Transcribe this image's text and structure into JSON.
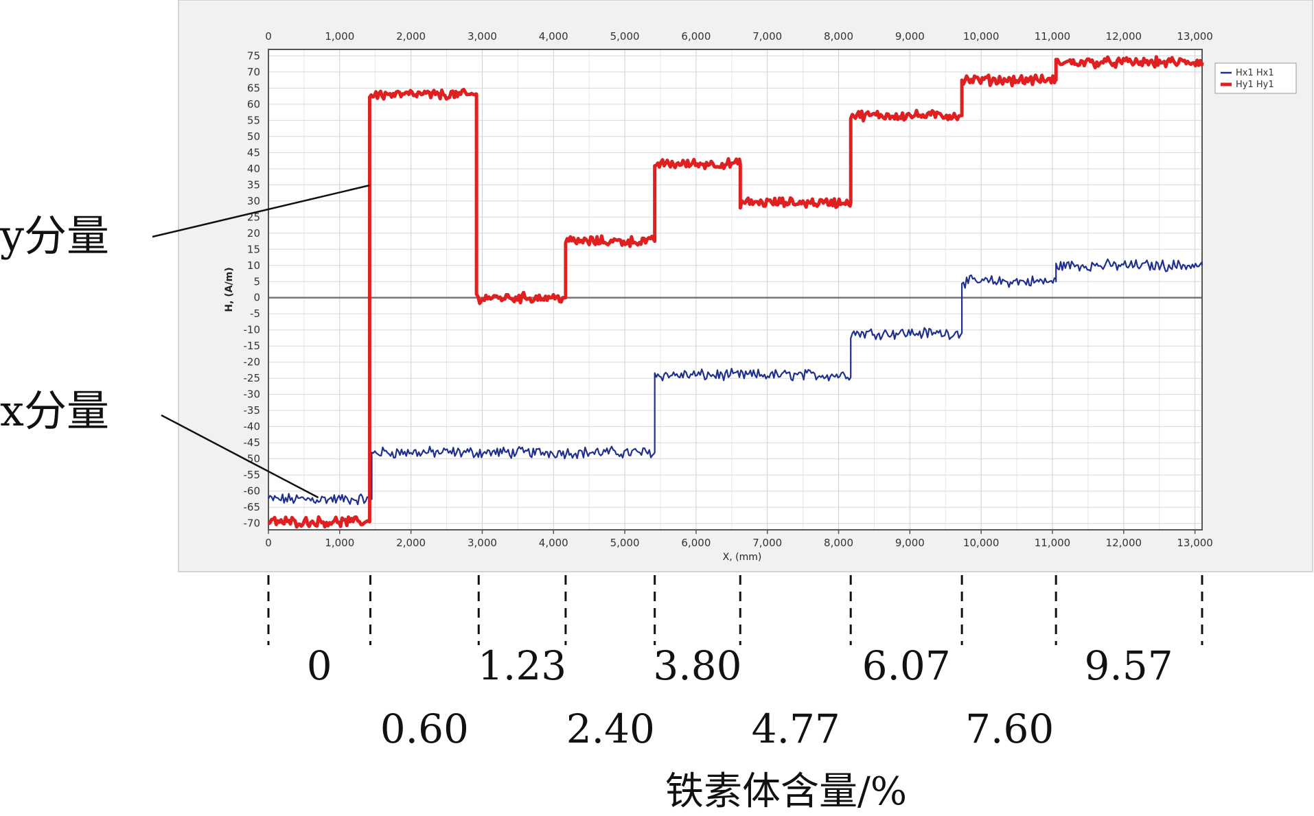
{
  "chart_data": {
    "type": "line",
    "xlabel": "X, (mm)",
    "ylabel": "H, (A/m)",
    "xlim": [
      0,
      13100
    ],
    "ylim": [
      -72,
      77
    ],
    "x_ticks": [
      0,
      1000,
      2000,
      3000,
      4000,
      5000,
      6000,
      7000,
      8000,
      9000,
      10000,
      11000,
      12000,
      13000
    ],
    "x_tick_labels": [
      "0",
      "1,000",
      "2,000",
      "3,000",
      "4,000",
      "5,000",
      "6,000",
      "7,000",
      "8,000",
      "9,000",
      "10,000",
      "11,000",
      "12,000",
      "13,000"
    ],
    "y_ticks": [
      75,
      70,
      65,
      60,
      55,
      50,
      45,
      40,
      35,
      30,
      25,
      20,
      15,
      10,
      5,
      0,
      -5,
      -10,
      -15,
      -20,
      -25,
      -30,
      -35,
      -40,
      -45,
      -50,
      -55,
      -60,
      -65,
      -70
    ],
    "grid": true,
    "legend_position": "top-right",
    "series": [
      {
        "name": "Hx1 Hx1",
        "color": "#1f2f8f",
        "segments": [
          {
            "x_start": 0,
            "x_end": 1450,
            "value": -62.5
          },
          {
            "x_start": 1450,
            "x_end": 5420,
            "value": -48
          },
          {
            "x_start": 5420,
            "x_end": 8170,
            "value": -24
          },
          {
            "x_start": 8170,
            "x_end": 9730,
            "value": -11
          },
          {
            "x_start": 9730,
            "x_end": 11050,
            "value": 5
          },
          {
            "x_start": 11050,
            "x_end": 13100,
            "value": 10
          }
        ]
      },
      {
        "name": "Hy1 Hy1",
        "color": "#e02020",
        "segments": [
          {
            "x_start": 0,
            "x_end": 1420,
            "value": -69.5
          },
          {
            "x_start": 1420,
            "x_end": 2920,
            "value": 63
          },
          {
            "x_start": 2920,
            "x_end": 4170,
            "value": 0
          },
          {
            "x_start": 4170,
            "x_end": 5420,
            "value": 17.5
          },
          {
            "x_start": 5420,
            "x_end": 6620,
            "value": 41.5
          },
          {
            "x_start": 6620,
            "x_end": 8170,
            "value": 29.5
          },
          {
            "x_start": 8170,
            "x_end": 9730,
            "value": 56.5
          },
          {
            "x_start": 9730,
            "x_end": 11050,
            "value": 67.5
          },
          {
            "x_start": 11050,
            "x_end": 13100,
            "value": 73
          }
        ]
      }
    ],
    "annotations": {
      "y_component": "y分量",
      "x_component": "x分量",
      "ferrite_title": "铁素体含量/%",
      "ferrite_boundaries": [
        0,
        1430,
        2950,
        4170,
        5420,
        6620,
        8170,
        9730,
        11050,
        13100
      ],
      "ferrite_levels_top": [
        {
          "label": "0",
          "x_mid": 715
        },
        {
          "label": "1.23",
          "x_mid": 3560
        },
        {
          "label": "3.80",
          "x_mid": 6020
        },
        {
          "label": "6.07",
          "x_mid": 8950
        },
        {
          "label": "9.57",
          "x_mid": 12070
        }
      ],
      "ferrite_levels_bottom": [
        {
          "label": "0.60",
          "x_mid": 2190
        },
        {
          "label": "2.40",
          "x_mid": 4800
        },
        {
          "label": "4.77",
          "x_mid": 7400
        },
        {
          "label": "7.60",
          "x_mid": 10400
        }
      ]
    }
  }
}
